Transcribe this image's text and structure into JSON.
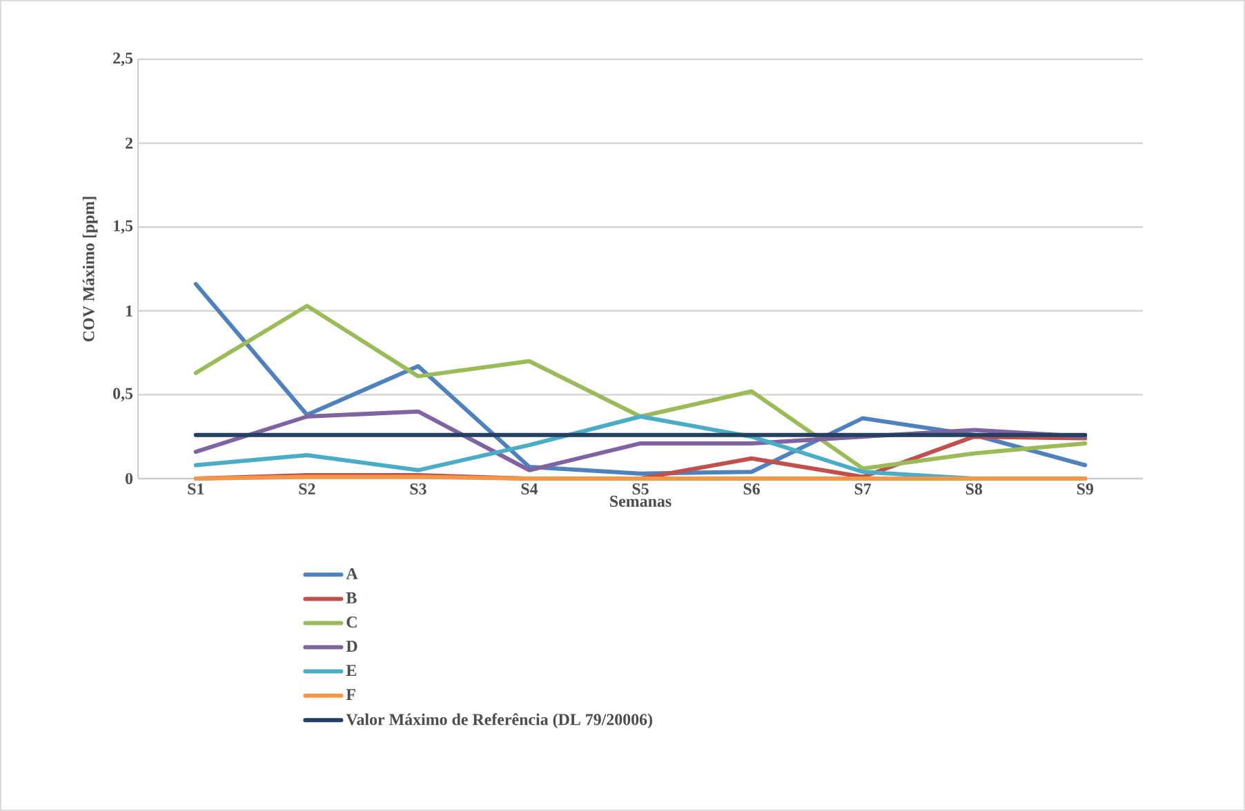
{
  "chart_data": {
    "type": "line",
    "xlabel": "Semanas",
    "ylabel": "COV Máximo [ppm]",
    "categories": [
      "S1",
      "S2",
      "S3",
      "S4",
      "S5",
      "S6",
      "S7",
      "S8",
      "S9"
    ],
    "series": [
      {
        "name": "A",
        "color": "#4f81bd",
        "values": [
          1.16,
          0.38,
          0.67,
          0.07,
          0.03,
          0.04,
          0.36,
          0.26,
          0.08
        ]
      },
      {
        "name": "B",
        "color": "#c0504d",
        "values": [
          0,
          0.02,
          0.02,
          0,
          0,
          0.12,
          0.01,
          0.25,
          0.24
        ]
      },
      {
        "name": "C",
        "color": "#9bbb59",
        "values": [
          0.63,
          1.03,
          0.61,
          0.7,
          0.37,
          0.52,
          0.06,
          0.15,
          0.21
        ]
      },
      {
        "name": "D",
        "color": "#8064a2",
        "values": [
          0.16,
          0.37,
          0.4,
          0.05,
          0.21,
          0.21,
          0.25,
          0.29,
          0.25
        ]
      },
      {
        "name": "E",
        "color": "#4bacc6",
        "values": [
          0.08,
          0.14,
          0.05,
          0.2,
          0.37,
          0.25,
          0.04,
          0,
          0
        ]
      },
      {
        "name": "F",
        "color": "#f79646",
        "values": [
          0,
          0.01,
          0.01,
          0,
          0,
          0,
          0,
          0,
          0
        ]
      },
      {
        "name": "Valor Máximo de Referência (DL 79/20006)",
        "color": "#243f60",
        "values": [
          0.26,
          0.26,
          0.26,
          0.26,
          0.26,
          0.26,
          0.26,
          0.26,
          0.26
        ]
      }
    ],
    "ylim": [
      0,
      2.5
    ],
    "yticks": [
      0,
      {
        "value": 0.5,
        "label": "0,5"
      },
      1,
      {
        "value": 1.5,
        "label": "1,5"
      },
      2,
      {
        "value": 2.5,
        "label": "2,5"
      }
    ],
    "grid": "y",
    "legend": "bottom",
    "marker": "none",
    "line_style": "solid"
  }
}
